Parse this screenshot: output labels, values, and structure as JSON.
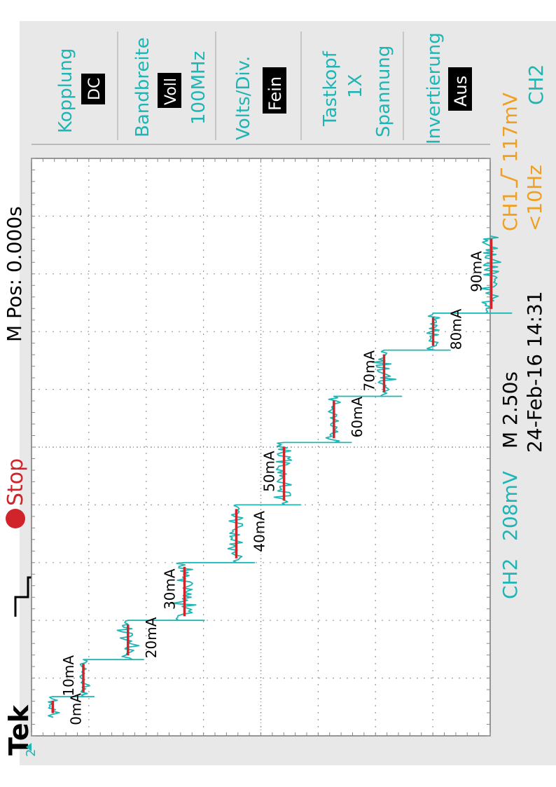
{
  "header": {
    "brand": "Tek",
    "run_state": "Stop",
    "horizontal_position": "M Pos: 0.000s"
  },
  "menu": {
    "channel": "CH2",
    "items": [
      {
        "label": "Kopplung",
        "value": "DC"
      },
      {
        "label": "Bandbreite",
        "value": "Voll",
        "extra": "100MHz"
      },
      {
        "label": "Volts/Div.",
        "value": "Fein"
      },
      {
        "label": "Tastkopf",
        "line2": "1X",
        "line3": "Spannung"
      },
      {
        "label": "Invertierung",
        "value": "Aus"
      }
    ]
  },
  "status": {
    "ch2_label": "CH2",
    "ch2_scale": "208mV",
    "timebase": "M 2.50s",
    "datetime": "24-Feb-16 14:31",
    "trigger_channel": "CH1",
    "trigger_level": "117mV",
    "trigger_freq": "<10Hz"
  },
  "colors": {
    "trace": "#1fb5b5",
    "mean_marker": "#d0232a",
    "trigger": "#f0a020",
    "grid": "#9a9a9a",
    "text": "#000000"
  },
  "chart_data": {
    "type": "line",
    "title": "",
    "xlabel": "",
    "ylabel": "",
    "x_unit": "s",
    "y_unit": "mV",
    "x_per_div": 2.5,
    "y_per_div": 208,
    "xlim": [
      -12.5,
      12.5
    ],
    "ylim": [
      0,
      1664
    ],
    "series": [
      {
        "name": "CH2",
        "steps": [
          {
            "label": "0mA",
            "x_start": -11.7,
            "x_end": -10.8,
            "level": 77,
            "noise": 35
          },
          {
            "label": "10mA",
            "x_start": -10.8,
            "x_end": -9.2,
            "level": 188,
            "noise": 30
          },
          {
            "label": "20mA",
            "x_start": -9.2,
            "x_end": -7.5,
            "level": 350,
            "noise": 45
          },
          {
            "label": "30mA",
            "x_start": -7.5,
            "x_end": -5.0,
            "level": 555,
            "noise": 60
          },
          {
            "label": "40mA",
            "x_start": -5.0,
            "x_end": -2.5,
            "level": 743,
            "noise": 50
          },
          {
            "label": "50mA",
            "x_start": -2.5,
            "x_end": 0.2,
            "level": 916,
            "noise": 55
          },
          {
            "label": "60mA",
            "x_start": 0.2,
            "x_end": 2.2,
            "level": 1097,
            "noise": 45
          },
          {
            "label": "70mA",
            "x_start": 2.2,
            "x_end": 4.2,
            "level": 1279,
            "noise": 50
          },
          {
            "label": "80mA",
            "x_start": 4.2,
            "x_end": 5.8,
            "level": 1457,
            "noise": 45
          },
          {
            "label": "90mA",
            "x_start": 5.8,
            "x_end": 9.2,
            "level": 1668,
            "noise": 55
          }
        ]
      }
    ],
    "ground_marker": "2",
    "grid": true
  }
}
